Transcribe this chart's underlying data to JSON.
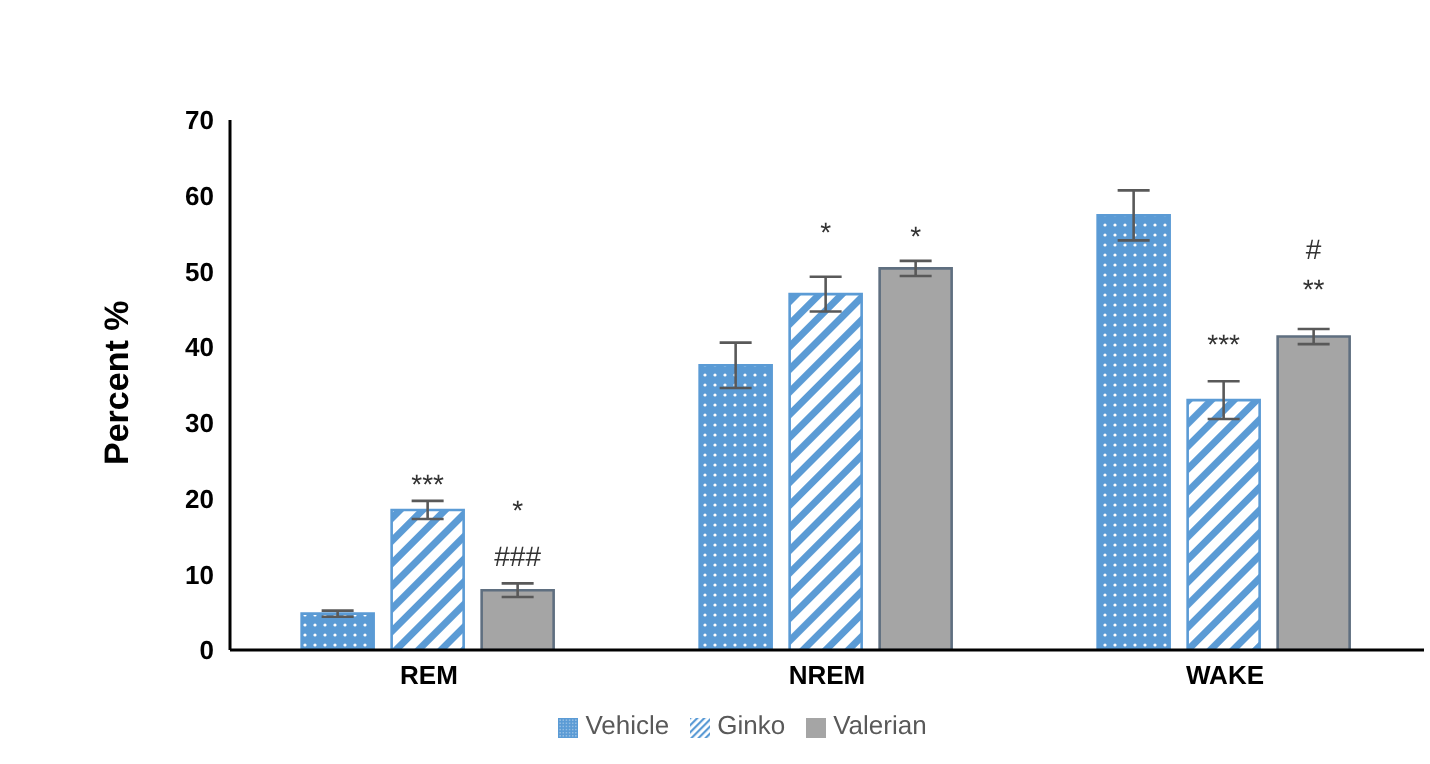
{
  "chart_data": {
    "type": "bar",
    "ylabel": "Percent %",
    "categories": [
      "REM",
      "NREM",
      "WAKE"
    ],
    "series": [
      {
        "name": "Vehicle",
        "color": "#5b9bd5",
        "values": [
          4.8,
          37.6,
          57.4
        ],
        "errors": [
          0.4,
          3,
          3.3
        ]
      },
      {
        "name": "Ginko",
        "color": "#5b9bd5",
        "values": [
          18.5,
          47,
          33
        ],
        "errors": [
          1.2,
          2.3,
          2.5
        ]
      },
      {
        "name": "Valerian",
        "color": "#a5a5a5",
        "values": [
          7.9,
          50.4,
          41.4
        ],
        "errors": [
          0.9,
          1,
          1
        ]
      }
    ],
    "ylim": [
      0,
      70
    ],
    "yticks": [
      0,
      10,
      20,
      30,
      40,
      50,
      60,
      70
    ],
    "grid": false,
    "legend": "bottom",
    "annotations": [
      "***",
      "*",
      "###",
      "*",
      "*",
      "***",
      "**",
      "#"
    ]
  }
}
